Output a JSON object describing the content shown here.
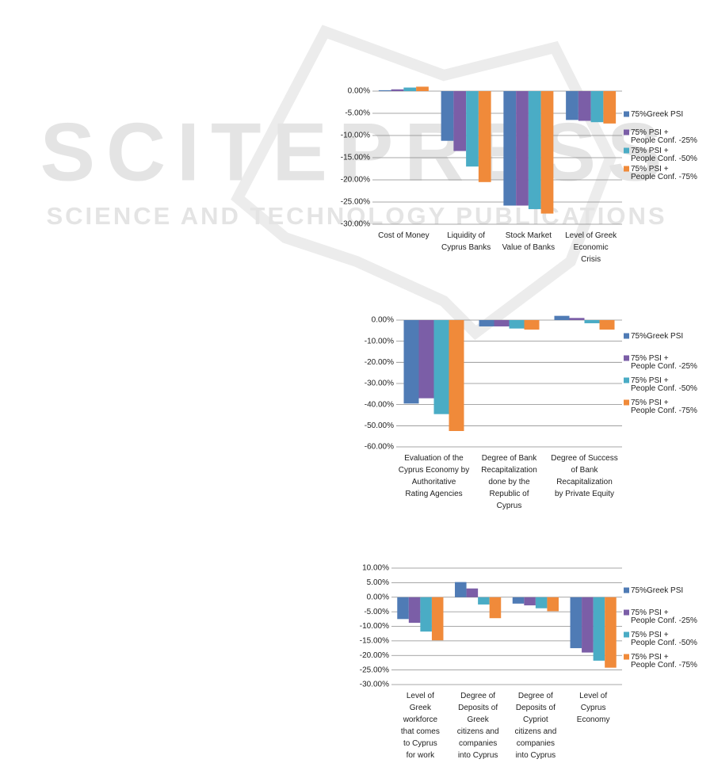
{
  "watermark": {
    "title": "SCITEPRESS",
    "subtitle": "SCIENCE AND TECHNOLOGY PUBLICATIONS"
  },
  "chart_data": [
    {
      "type": "bar",
      "categories": [
        "Cost of Money",
        "Liquidity of Cyprus Banks",
        "Stock Market Value of Banks",
        "Level of Greek Economic Crisis"
      ],
      "series": [
        {
          "name": "75%Greek PSI",
          "color": "#4f7bb5",
          "values": [
            0.2,
            -11.2,
            -25.8,
            -6.5
          ]
        },
        {
          "name": "75% PSI + People Conf. -25%",
          "color": "#7b5ea7",
          "values": [
            0.4,
            -13.5,
            -25.8,
            -6.7
          ]
        },
        {
          "name": "75% PSI + People Conf. -50%",
          "color": "#4aacc5",
          "values": [
            0.8,
            -17,
            -26.6,
            -7.0
          ]
        },
        {
          "name": "75% PSI + People Conf. -75%",
          "color": "#f08a3a",
          "values": [
            1.0,
            -20.5,
            -27.6,
            -7.3
          ]
        }
      ],
      "ylim": [
        -30,
        1.5
      ],
      "yticks": [
        {
          "value": 0,
          "label": "0.00%"
        },
        {
          "value": -5,
          "label": "-5.00%"
        },
        {
          "value": -10,
          "label": "-10.00%"
        },
        {
          "value": -15,
          "label": "-15.00%"
        },
        {
          "value": -20,
          "label": "-20.00%"
        },
        {
          "value": -25,
          "label": "-25.00%"
        },
        {
          "value": -30,
          "label": "-30.00%"
        }
      ],
      "grid": true,
      "legend": "right"
    },
    {
      "type": "bar",
      "categories": [
        "Evaluation of the Cyprus Economy by Authoritative Rating Agencies",
        "Degree of Bank Recapitalization done by the Republic of Cyprus",
        "Degree of Success of Bank Recapitalization by Private Equity"
      ],
      "series": [
        {
          "name": "75%Greek PSI",
          "color": "#4f7bb5",
          "values": [
            -39.5,
            -3,
            2
          ]
        },
        {
          "name": "75% PSI + People Conf. -25%",
          "color": "#7b5ea7",
          "values": [
            -37,
            -3,
            1
          ]
        },
        {
          "name": "75% PSI + People Conf. -50%",
          "color": "#4aacc5",
          "values": [
            -44.5,
            -4,
            -1.5
          ]
        },
        {
          "name": "75% PSI + People Conf. -75%",
          "color": "#f08a3a",
          "values": [
            -52.5,
            -4.5,
            -4.5
          ]
        }
      ],
      "ylim": [
        -60,
        2.5
      ],
      "yticks": [
        {
          "value": 0,
          "label": "0.00%"
        },
        {
          "value": -10,
          "label": "-10.00%"
        },
        {
          "value": -20,
          "label": "-20.00%"
        },
        {
          "value": -30,
          "label": "-30.00%"
        },
        {
          "value": -40,
          "label": "-40.00%"
        },
        {
          "value": -50,
          "label": "-50.00%"
        },
        {
          "value": -60,
          "label": "-60.00%"
        }
      ],
      "grid": true,
      "legend": "right"
    },
    {
      "type": "bar",
      "categories": [
        "Level of Greek workforce that comes to Cyprus for work",
        "Degree of Deposits of Greek citizens and companies into Cyprus Banks",
        "Degree of Deposits of Cypriot citizens and companies into Cyprus Banks",
        "Level of Cyprus Economy"
      ],
      "series": [
        {
          "name": "75%Greek PSI",
          "color": "#4f7bb5",
          "values": [
            -7.5,
            5.2,
            -2.2,
            -17.5
          ]
        },
        {
          "name": "75% PSI + People Conf. -25%",
          "color": "#7b5ea7",
          "values": [
            -8.8,
            3,
            -2.8,
            -19
          ]
        },
        {
          "name": "75% PSI + People Conf. -50%",
          "color": "#4aacc5",
          "values": [
            -11.8,
            -2.5,
            -3.8,
            -21.8
          ]
        },
        {
          "name": "75% PSI + People Conf. -75%",
          "color": "#f08a3a",
          "values": [
            -14.8,
            -7.2,
            -4.8,
            -24.2
          ]
        }
      ],
      "ylim": [
        -30,
        10
      ],
      "yticks": [
        {
          "value": 10,
          "label": "10.00%"
        },
        {
          "value": 5,
          "label": "5.00%"
        },
        {
          "value": 0,
          "label": "0.00%"
        },
        {
          "value": -5,
          "label": "-5.00%"
        },
        {
          "value": -10,
          "label": "-10.00%"
        },
        {
          "value": -15,
          "label": "-15.00%"
        },
        {
          "value": -20,
          "label": "-20.00%"
        },
        {
          "value": -25,
          "label": "-25.00%"
        },
        {
          "value": -30,
          "label": "-30.00%"
        }
      ],
      "grid": true,
      "legend": "right"
    }
  ]
}
